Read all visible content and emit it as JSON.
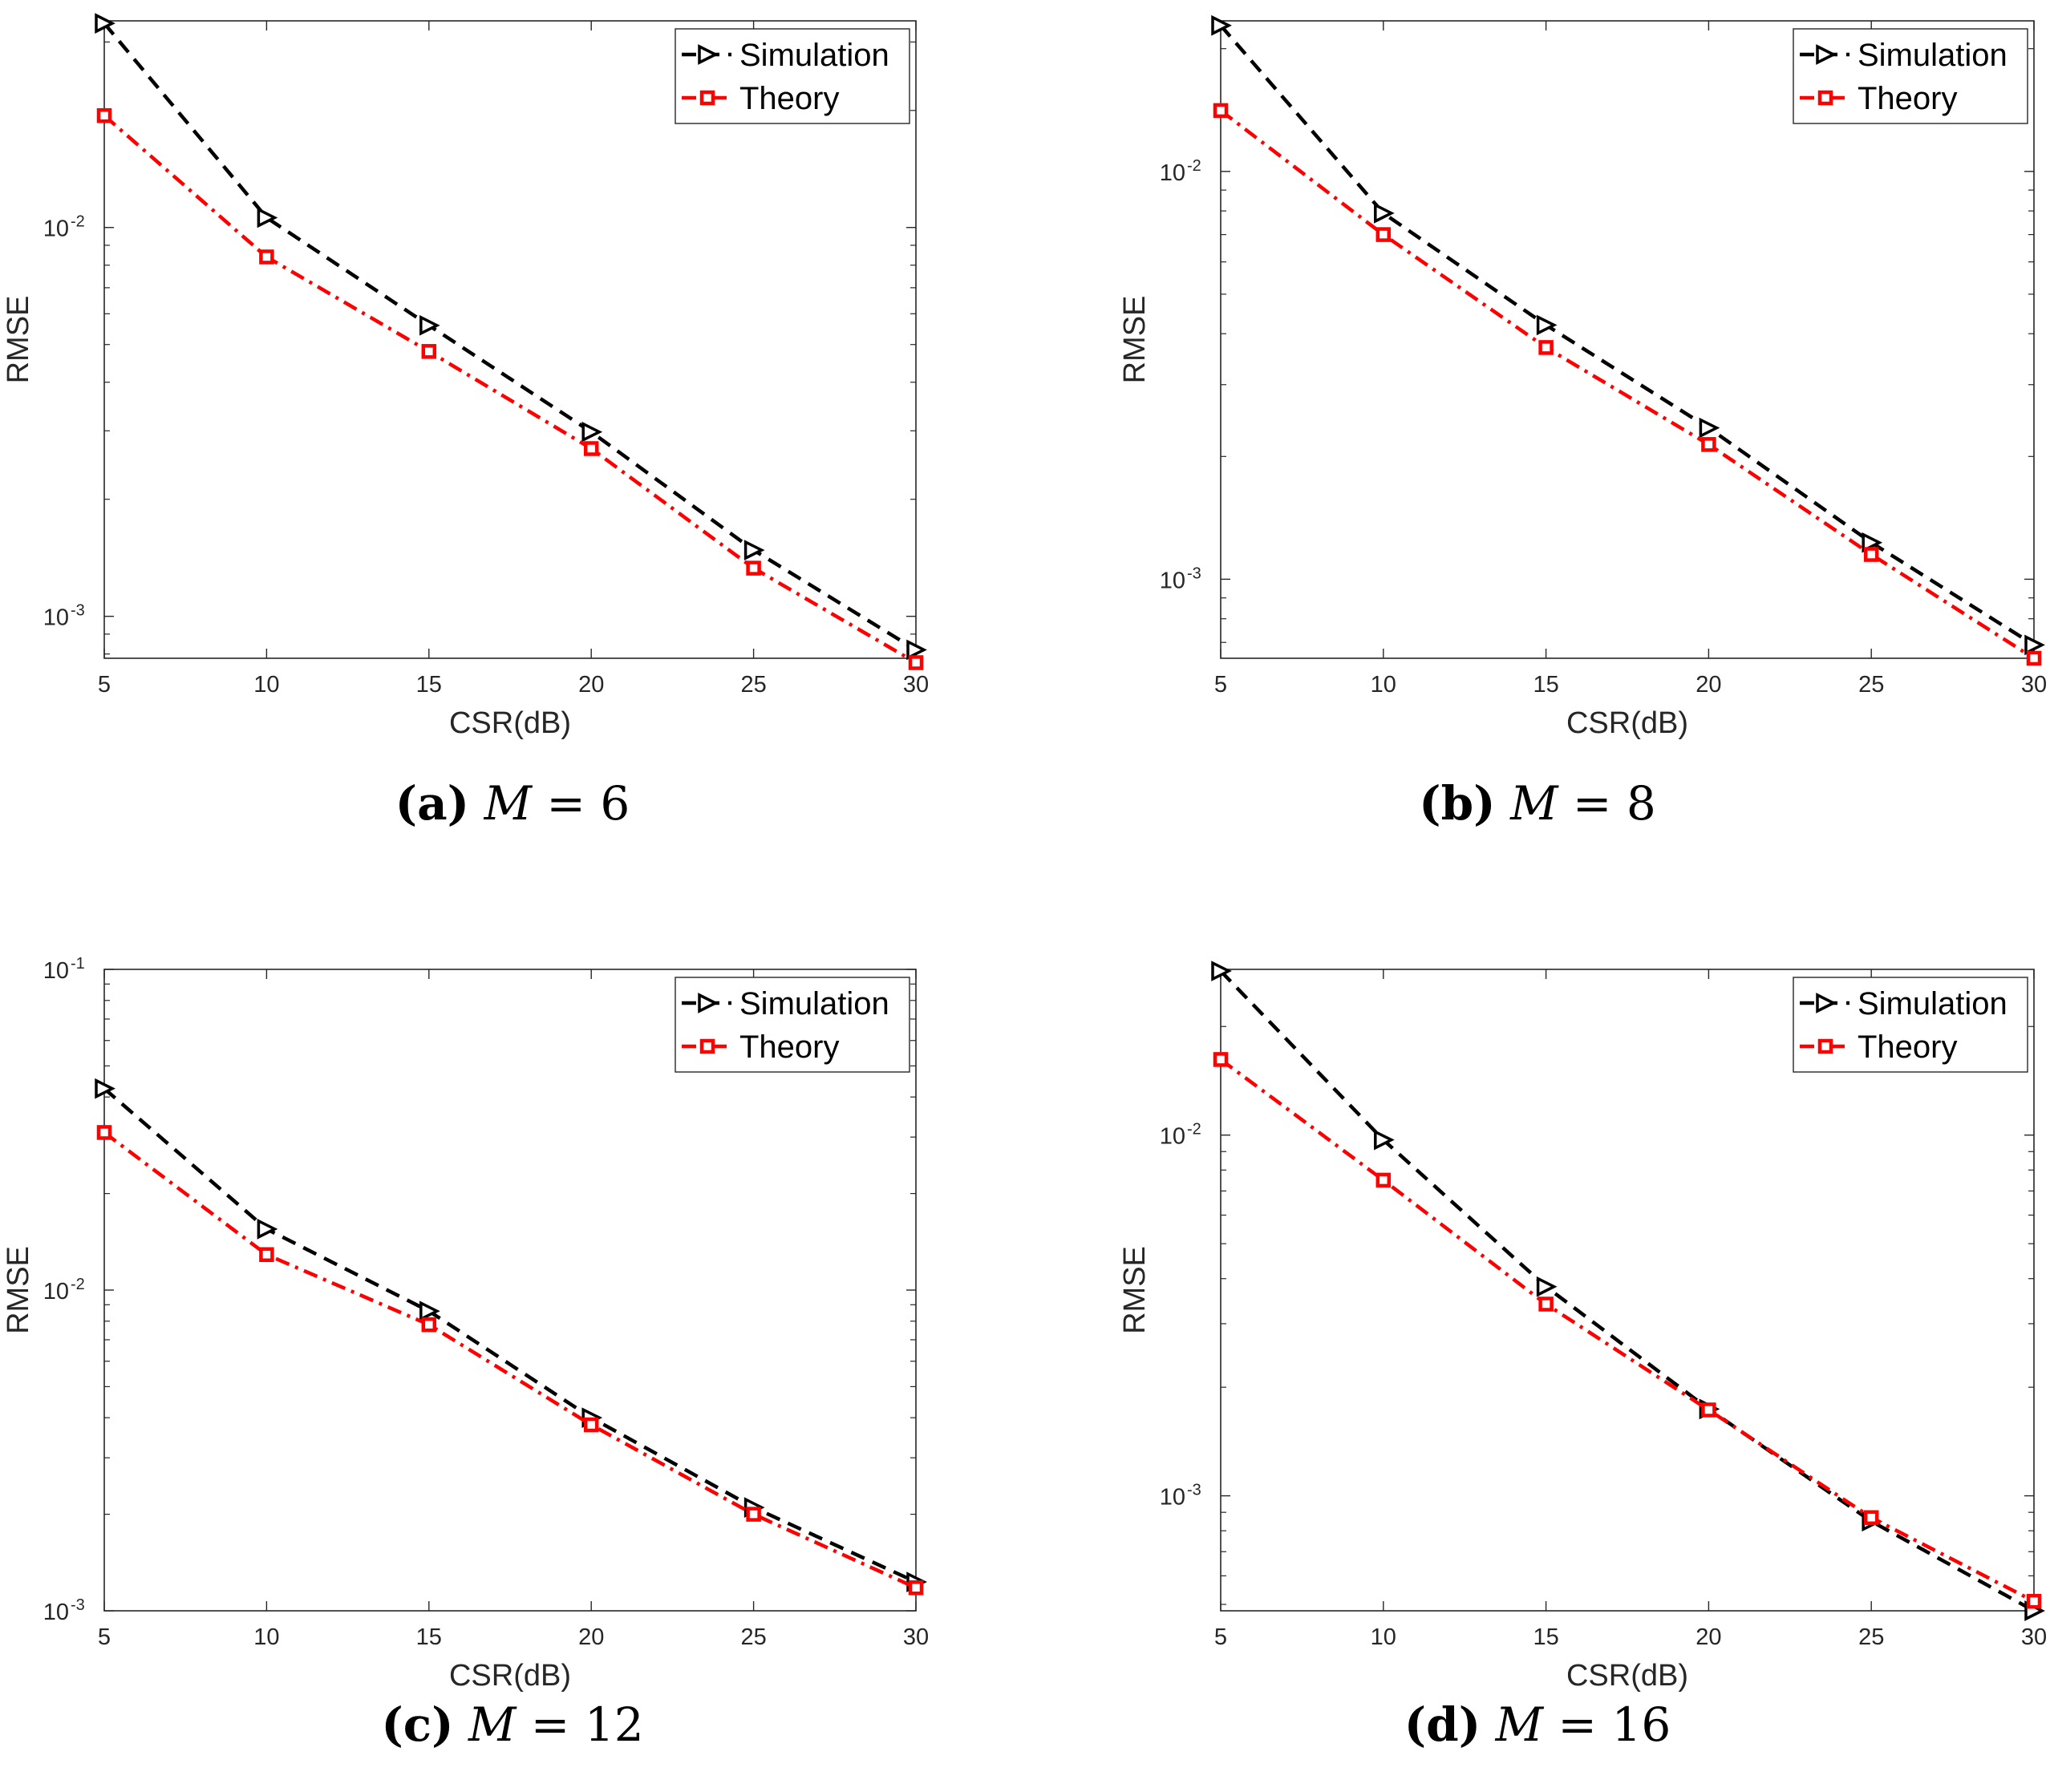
{
  "figure": {
    "axis": {
      "tick_base": "10",
      "x_label": "CSR(dB)",
      "y_label": "RMSE"
    },
    "series_meta": [
      {
        "name": "Simulation",
        "color": "#000000",
        "dash": "dashed",
        "marker": "triangle-right"
      },
      {
        "name": "Theory",
        "color": "#ff0000",
        "dash": "dash-dot",
        "marker": "square"
      }
    ]
  },
  "chart_data": [
    {
      "type": "line",
      "panel_label": "(a)",
      "caption_var": "M",
      "caption_eq": " = 6",
      "xlabel": "CSR(dB)",
      "ylabel": "RMSE",
      "yscale": "log",
      "xlim": [
        5,
        30
      ],
      "ylim": [
        0.00078,
        0.034
      ],
      "x": [
        5,
        10,
        15,
        20,
        25,
        30
      ],
      "xticks": [
        "5",
        "10",
        "15",
        "20",
        "25",
        "30"
      ],
      "yticks": [
        {
          "value": 0.01,
          "mant": "10",
          "exp": "-2"
        },
        {
          "value": 0.001,
          "mant": "10",
          "exp": "-3"
        }
      ],
      "legend": "top-right",
      "series": [
        {
          "name": "Simulation",
          "values": [
            0.0335,
            0.0106,
            0.0056,
            0.00298,
            0.00148,
            0.00082
          ]
        },
        {
          "name": "Theory",
          "values": [
            0.0194,
            0.0084,
            0.0048,
            0.0027,
            0.00133,
            0.00076
          ]
        }
      ]
    },
    {
      "type": "line",
      "panel_label": "(b)",
      "caption_var": "M",
      "caption_eq": " = 8",
      "xlabel": "CSR(dB)",
      "ylabel": "RMSE",
      "yscale": "log",
      "xlim": [
        5,
        30
      ],
      "ylim": [
        0.00064,
        0.0234
      ],
      "x": [
        5,
        10,
        15,
        20,
        25,
        30
      ],
      "xticks": [
        "5",
        "10",
        "15",
        "20",
        "25",
        "30"
      ],
      "yticks": [
        {
          "value": 0.01,
          "mant": "10",
          "exp": "-2"
        },
        {
          "value": 0.001,
          "mant": "10",
          "exp": "-3"
        }
      ],
      "legend": "top-right",
      "series": [
        {
          "name": "Simulation",
          "values": [
            0.0228,
            0.0079,
            0.0042,
            0.00235,
            0.00123,
            0.00069
          ]
        },
        {
          "name": "Theory",
          "values": [
            0.0141,
            0.007,
            0.0037,
            0.00214,
            0.00115,
            0.00064
          ]
        }
      ]
    },
    {
      "type": "line",
      "panel_label": "(c)",
      "caption_var": "M",
      "caption_eq": " = 12",
      "xlabel": "CSR(dB)",
      "ylabel": "RMSE",
      "yscale": "log",
      "xlim": [
        5,
        30
      ],
      "ylim": [
        0.001,
        0.1
      ],
      "x": [
        5,
        10,
        15,
        20,
        25,
        30
      ],
      "xticks": [
        "5",
        "10",
        "15",
        "20",
        "25",
        "30"
      ],
      "yticks": [
        {
          "value": 0.1,
          "mant": "10",
          "exp": "-1"
        },
        {
          "value": 0.01,
          "mant": "10",
          "exp": "-2"
        },
        {
          "value": 0.001,
          "mant": "10",
          "exp": "-3"
        }
      ],
      "legend": "top-right",
      "series": [
        {
          "name": "Simulation",
          "values": [
            0.0425,
            0.0155,
            0.0086,
            0.004,
            0.0021,
            0.00123
          ]
        },
        {
          "name": "Theory",
          "values": [
            0.031,
            0.0129,
            0.0078,
            0.0038,
            0.002,
            0.00118
          ]
        }
      ]
    },
    {
      "type": "line",
      "panel_label": "(d)",
      "caption_var": "M",
      "caption_eq": " = 16",
      "xlabel": "CSR(dB)",
      "ylabel": "RMSE",
      "yscale": "log",
      "xlim": [
        5,
        30
      ],
      "ylim": [
        0.00048,
        0.0288
      ],
      "x": [
        5,
        10,
        15,
        20,
        25,
        30
      ],
      "xticks": [
        "5",
        "10",
        "15",
        "20",
        "25",
        "30"
      ],
      "yticks": [
        {
          "value": 0.01,
          "mant": "10",
          "exp": "-2"
        },
        {
          "value": 0.001,
          "mant": "10",
          "exp": "-3"
        }
      ],
      "legend": "top-right",
      "series": [
        {
          "name": "Simulation",
          "values": [
            0.0285,
            0.0097,
            0.0038,
            0.00174,
            0.00085,
            0.00048
          ]
        },
        {
          "name": "Theory",
          "values": [
            0.0162,
            0.0075,
            0.0034,
            0.00173,
            0.00087,
            0.00051
          ]
        }
      ]
    }
  ]
}
